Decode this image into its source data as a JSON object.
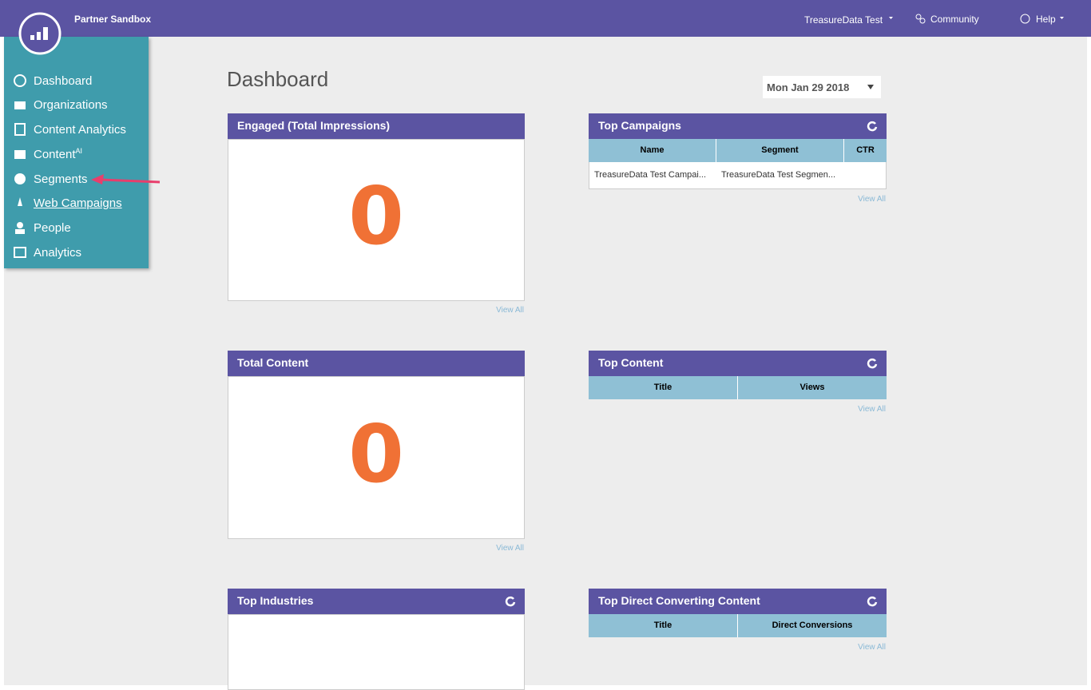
{
  "header": {
    "workspace": "Partner Sandbox",
    "user": "TreasureData Test",
    "community": "Community",
    "help": "Help"
  },
  "sidebar": {
    "items": [
      {
        "label": "Dashboard"
      },
      {
        "label": "Organizations"
      },
      {
        "label": "Content Analytics"
      },
      {
        "label": "Content",
        "sup": "AI"
      },
      {
        "label": "Segments"
      },
      {
        "label": "Web Campaigns"
      },
      {
        "label": "People"
      },
      {
        "label": "Analytics"
      }
    ]
  },
  "page": {
    "title": "Dashboard",
    "date": "Mon Jan 29 2018"
  },
  "widgets": [
    {
      "title": "Engaged (Total Impressions)",
      "value": "0",
      "link": "View All"
    },
    {
      "title": "Top Campaigns",
      "columns": [
        "Name",
        "Segment",
        "CTR"
      ],
      "rows": [
        [
          "TreasureData Test Campai...",
          "TreasureData Test Segmen..."
        ]
      ],
      "link": "View All"
    },
    {
      "title": "Total Content",
      "value": "0",
      "link": "View All"
    },
    {
      "title": "Top Content",
      "columns": [
        "Title",
        "Views"
      ],
      "link": "View All"
    },
    {
      "title": "Top Industries"
    },
    {
      "title": "Top Direct Converting Content",
      "columns": [
        "Title",
        "Direct Conversions"
      ],
      "link": "View All"
    }
  ]
}
